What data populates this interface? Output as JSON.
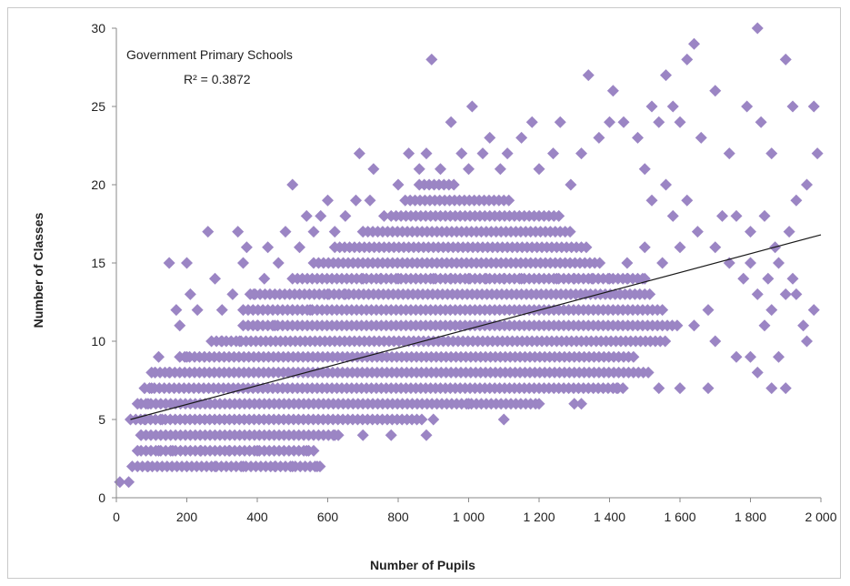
{
  "chart_data": {
    "type": "scatter",
    "title": "",
    "xlabel": "Number of Pupils",
    "ylabel": "Number of Classes",
    "xlim": [
      0,
      2000
    ],
    "ylim": [
      0,
      30
    ],
    "x_ticks": [
      0,
      200,
      400,
      600,
      800,
      1000,
      1200,
      1400,
      1600,
      1800,
      2000
    ],
    "x_tick_labels": [
      "0",
      "200",
      "400",
      "600",
      "800",
      "1 000",
      "1 200",
      "1 400",
      "1 600",
      "1 800",
      "2 000"
    ],
    "y_ticks": [
      0,
      5,
      10,
      15,
      20,
      25,
      30
    ],
    "y_tick_labels": [
      "0",
      "5",
      "10",
      "15",
      "20",
      "25",
      "30"
    ],
    "grid": false,
    "marker_color": "#9b85c4",
    "trendline_color": "#1a1a1a",
    "annotation": {
      "line1": "Government Primary Schools",
      "line2": "R² = 0.3872"
    },
    "trendline": {
      "x": [
        40,
        2000
      ],
      "y": [
        5.0,
        16.8
      ]
    },
    "series": [
      {
        "points": [
          [
            10,
            1
          ],
          [
            35,
            1
          ],
          [
            45,
            2
          ],
          [
            60,
            3
          ],
          [
            70,
            4
          ],
          [
            80,
            5
          ],
          [
            90,
            6
          ],
          [
            100,
            7
          ],
          [
            110,
            8
          ],
          [
            120,
            9
          ],
          [
            130,
            5
          ],
          [
            140,
            4
          ],
          [
            150,
            15
          ],
          [
            170,
            12
          ],
          [
            180,
            11
          ],
          [
            200,
            15
          ],
          [
            210,
            13
          ],
          [
            230,
            12
          ],
          [
            260,
            17
          ],
          [
            280,
            14
          ],
          [
            300,
            12
          ],
          [
            330,
            13
          ],
          [
            345,
            17
          ],
          [
            360,
            15
          ],
          [
            370,
            16
          ],
          [
            390,
            13
          ],
          [
            420,
            14
          ],
          [
            430,
            16
          ],
          [
            460,
            15
          ],
          [
            480,
            17
          ],
          [
            500,
            20
          ],
          [
            520,
            16
          ],
          [
            540,
            18
          ],
          [
            560,
            17
          ],
          [
            580,
            18
          ],
          [
            600,
            19
          ],
          [
            620,
            17
          ],
          [
            650,
            18
          ],
          [
            680,
            19
          ],
          [
            690,
            22
          ],
          [
            700,
            17
          ],
          [
            720,
            19
          ],
          [
            730,
            21
          ],
          [
            760,
            18
          ],
          [
            800,
            20
          ],
          [
            830,
            22
          ],
          [
            860,
            21
          ],
          [
            880,
            22
          ],
          [
            895,
            28
          ],
          [
            920,
            21
          ],
          [
            950,
            24
          ],
          [
            980,
            22
          ],
          [
            1000,
            21
          ],
          [
            1010,
            25
          ],
          [
            1040,
            22
          ],
          [
            1060,
            23
          ],
          [
            1090,
            21
          ],
          [
            1110,
            22
          ],
          [
            1150,
            23
          ],
          [
            1180,
            24
          ],
          [
            1200,
            21
          ],
          [
            1240,
            22
          ],
          [
            1260,
            24
          ],
          [
            1290,
            20
          ],
          [
            1320,
            22
          ],
          [
            1340,
            27
          ],
          [
            1370,
            23
          ],
          [
            1400,
            24
          ],
          [
            1410,
            26
          ],
          [
            1440,
            24
          ],
          [
            1480,
            23
          ],
          [
            1500,
            21
          ],
          [
            1520,
            25
          ],
          [
            1540,
            24
          ],
          [
            1560,
            27
          ],
          [
            1580,
            25
          ],
          [
            1600,
            24
          ],
          [
            1620,
            28
          ],
          [
            1640,
            29
          ],
          [
            1660,
            23
          ],
          [
            1700,
            26
          ],
          [
            1740,
            22
          ],
          [
            1790,
            25
          ],
          [
            1820,
            30
          ],
          [
            1830,
            24
          ],
          [
            1860,
            22
          ],
          [
            1900,
            28
          ],
          [
            1920,
            25
          ],
          [
            1980,
            25
          ],
          [
            1990,
            22
          ],
          [
            40,
            5
          ],
          [
            60,
            6
          ],
          [
            80,
            7
          ],
          [
            100,
            8
          ],
          [
            150,
            8
          ],
          [
            200,
            9
          ],
          [
            250,
            9
          ],
          [
            300,
            10
          ],
          [
            350,
            10
          ],
          [
            400,
            11
          ],
          [
            450,
            11
          ],
          [
            500,
            12
          ],
          [
            550,
            12
          ],
          [
            600,
            13
          ],
          [
            650,
            13
          ],
          [
            700,
            14
          ],
          [
            750,
            14
          ],
          [
            800,
            14
          ],
          [
            850,
            14
          ],
          [
            900,
            14
          ],
          [
            950,
            14
          ],
          [
            1000,
            14
          ],
          [
            1050,
            14
          ],
          [
            1100,
            14
          ],
          [
            1150,
            14
          ],
          [
            1200,
            14
          ],
          [
            1250,
            14
          ],
          [
            1300,
            14
          ],
          [
            1350,
            14
          ],
          [
            1400,
            14
          ],
          [
            1450,
            14
          ],
          [
            1500,
            14
          ],
          [
            90,
            2
          ],
          [
            120,
            3
          ],
          [
            160,
            3
          ],
          [
            200,
            2
          ],
          [
            240,
            3
          ],
          [
            280,
            2
          ],
          [
            320,
            3
          ],
          [
            360,
            2
          ],
          [
            400,
            3
          ],
          [
            450,
            2
          ],
          [
            500,
            2
          ],
          [
            540,
            3
          ],
          [
            570,
            2
          ],
          [
            620,
            4
          ],
          [
            700,
            4
          ],
          [
            780,
            4
          ],
          [
            880,
            4
          ],
          [
            900,
            5
          ],
          [
            1000,
            6
          ],
          [
            1100,
            5
          ],
          [
            1200,
            6
          ],
          [
            1300,
            6
          ],
          [
            1320,
            6
          ],
          [
            1420,
            7
          ],
          [
            1540,
            7
          ],
          [
            1600,
            7
          ],
          [
            1680,
            7
          ],
          [
            1820,
            8
          ],
          [
            1860,
            7
          ],
          [
            1900,
            7
          ],
          [
            1450,
            15
          ],
          [
            1500,
            16
          ],
          [
            1550,
            15
          ],
          [
            1600,
            16
          ],
          [
            1650,
            17
          ],
          [
            1700,
            16
          ],
          [
            1740,
            15
          ],
          [
            1780,
            14
          ],
          [
            1800,
            15
          ],
          [
            1820,
            13
          ],
          [
            1850,
            14
          ],
          [
            1880,
            15
          ],
          [
            1900,
            13
          ],
          [
            1930,
            13
          ],
          [
            1950,
            11
          ],
          [
            1960,
            10
          ],
          [
            1980,
            12
          ],
          [
            1680,
            12
          ],
          [
            1640,
            11
          ],
          [
            1700,
            10
          ],
          [
            1760,
            9
          ],
          [
            1800,
            9
          ],
          [
            1840,
            11
          ],
          [
            1880,
            9
          ],
          [
            1860,
            12
          ],
          [
            1920,
            14
          ],
          [
            1720,
            18
          ],
          [
            1760,
            18
          ],
          [
            1800,
            17
          ],
          [
            1840,
            18
          ],
          [
            1870,
            16
          ],
          [
            1910,
            17
          ],
          [
            1930,
            19
          ],
          [
            1960,
            20
          ],
          [
            1620,
            19
          ],
          [
            1580,
            18
          ],
          [
            1560,
            20
          ],
          [
            1520,
            19
          ]
        ],
        "bands": [
          {
            "y": 2,
            "x": [
              60,
              580
            ]
          },
          {
            "y": 3,
            "x": [
              70,
              560
            ]
          },
          {
            "y": 4,
            "x": [
              70,
              640
            ]
          },
          {
            "y": 5,
            "x": [
              55,
              880
            ]
          },
          {
            "y": 6,
            "x": [
              70,
              1200
            ]
          },
          {
            "y": 7,
            "x": [
              80,
              1450
            ]
          },
          {
            "y": 8,
            "x": [
              110,
              1520
            ]
          },
          {
            "y": 9,
            "x": [
              180,
              1480
            ]
          },
          {
            "y": 10,
            "x": [
              270,
              1560
            ]
          },
          {
            "y": 11,
            "x": [
              360,
              1600
            ]
          },
          {
            "y": 12,
            "x": [
              360,
              1560
            ]
          },
          {
            "y": 13,
            "x": [
              380,
              1520
            ]
          },
          {
            "y": 14,
            "x": [
              500,
              1500
            ]
          },
          {
            "y": 15,
            "x": [
              560,
              1380
            ]
          },
          {
            "y": 16,
            "x": [
              620,
              1340
            ]
          },
          {
            "y": 17,
            "x": [
              700,
              1300
            ]
          },
          {
            "y": 18,
            "x": [
              780,
              1260
            ]
          },
          {
            "y": 19,
            "x": [
              820,
              1120
            ]
          },
          {
            "y": 20,
            "x": [
              860,
              960
            ]
          }
        ]
      }
    ]
  }
}
